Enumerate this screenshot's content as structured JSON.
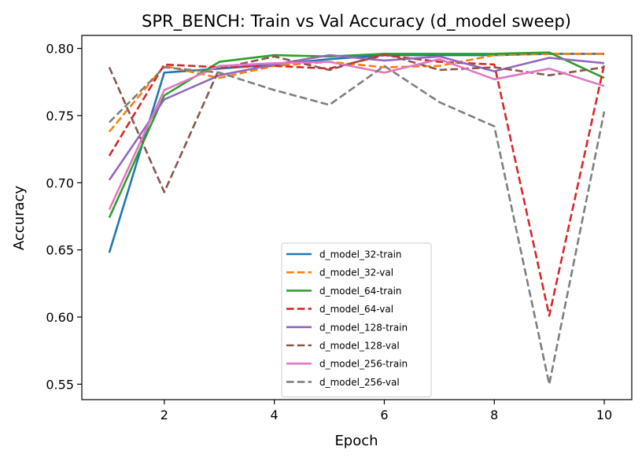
{
  "chart_data": {
    "type": "line",
    "title": "SPR_BENCH: Train vs Val Accuracy (d_model sweep)",
    "xlabel": "Epoch",
    "ylabel": "Accuracy",
    "xlim": [
      0.5,
      10.5
    ],
    "ylim": [
      0.5385,
      0.8097
    ],
    "xticks": [
      2,
      4,
      6,
      8,
      10
    ],
    "yticks": [
      0.55,
      0.6,
      0.65,
      0.7,
      0.75,
      0.8
    ],
    "ytick_labels": [
      "0.55",
      "0.60",
      "0.65",
      "0.70",
      "0.75",
      "0.80"
    ],
    "grid": false,
    "legend_position": "lower-center",
    "x": [
      1,
      2,
      3,
      4,
      5,
      6,
      7,
      8,
      9,
      10
    ],
    "series": [
      {
        "name": "d_model_32-train",
        "color": "#1f77b4",
        "dash": "solid",
        "values": [
          0.648,
          0.782,
          0.785,
          0.788,
          0.792,
          0.795,
          0.795,
          0.795,
          0.796,
          0.796
        ]
      },
      {
        "name": "d_model_32-val",
        "color": "#ff7f0e",
        "dash": "dashed",
        "values": [
          0.738,
          0.787,
          0.778,
          0.787,
          0.79,
          0.786,
          0.787,
          0.795,
          0.796,
          0.796
        ]
      },
      {
        "name": "d_model_64-train",
        "color": "#2ca02c",
        "dash": "solid",
        "values": [
          0.674,
          0.765,
          0.79,
          0.795,
          0.794,
          0.796,
          0.796,
          0.796,
          0.797,
          0.778
        ]
      },
      {
        "name": "d_model_64-val",
        "color": "#d62728",
        "dash": "dashed",
        "values": [
          0.72,
          0.788,
          0.786,
          0.787,
          0.785,
          0.795,
          0.79,
          0.788,
          0.601,
          0.788
        ]
      },
      {
        "name": "d_model_128-train",
        "color": "#9467bd",
        "dash": "solid",
        "values": [
          0.702,
          0.762,
          0.78,
          0.788,
          0.795,
          0.791,
          0.794,
          0.783,
          0.793,
          0.789
        ]
      },
      {
        "name": "d_model_128-val",
        "color": "#8c564b",
        "dash": "dashed",
        "values": [
          0.786,
          0.693,
          0.785,
          0.794,
          0.784,
          0.796,
          0.784,
          0.786,
          0.78,
          0.786
        ]
      },
      {
        "name": "d_model_256-train",
        "color": "#e377c2",
        "dash": "solid",
        "values": [
          0.68,
          0.769,
          0.787,
          0.789,
          0.79,
          0.782,
          0.792,
          0.777,
          0.785,
          0.772
        ]
      },
      {
        "name": "d_model_256-val",
        "color": "#7f7f7f",
        "dash": "dashed",
        "values": [
          0.745,
          0.786,
          0.782,
          0.769,
          0.758,
          0.787,
          0.76,
          0.742,
          0.55,
          0.753
        ]
      }
    ]
  }
}
